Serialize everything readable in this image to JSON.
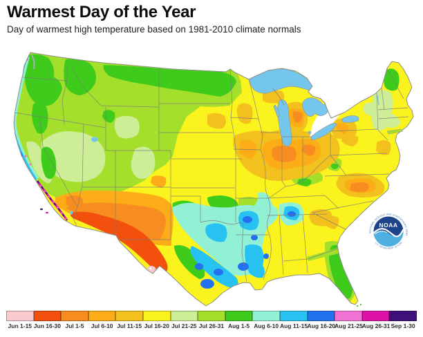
{
  "header": {
    "title": "Warmest Day of the Year",
    "subtitle": "Day of warmest high temperature based on 1981-2010 climate normals"
  },
  "legend": {
    "items": [
      {
        "label": "Jun 1-15",
        "color": "#f8c9cd"
      },
      {
        "label": "Jun 16-30",
        "color": "#f3500e"
      },
      {
        "label": "Jul 1-5",
        "color": "#f78d20"
      },
      {
        "label": "Jul 6-10",
        "color": "#fbac16"
      },
      {
        "label": "Jul 11-15",
        "color": "#f3c11d"
      },
      {
        "label": "Jul 16-20",
        "color": "#fbf31d"
      },
      {
        "label": "Jul 21-25",
        "color": "#cdee96"
      },
      {
        "label": "Jul 26-31",
        "color": "#a4df2c"
      },
      {
        "label": "Aug 1-5",
        "color": "#3ecb1b"
      },
      {
        "label": "Aug 6-10",
        "color": "#92f0d5"
      },
      {
        "label": "Aug 11-15",
        "color": "#27c2f2"
      },
      {
        "label": "Aug 16-20",
        "color": "#2471ef"
      },
      {
        "label": "Aug 21-25",
        "color": "#f272d3"
      },
      {
        "label": "Aug 26-31",
        "color": "#de12a8"
      },
      {
        "label": "Sep 1-30",
        "color": "#3d1178"
      }
    ]
  },
  "map": {
    "region": "Contiguous United States choropleth",
    "lake_color": "#74c6ec",
    "border_color": "#7a7a7a",
    "outline_color": "#8c8c8c"
  },
  "noaa_logo": {
    "acronym": "NOAA",
    "top_text": "NATIONAL OCEANIC AND ATMOSPHERIC ADMINISTRATION",
    "bottom_text": "U.S. DEPARTMENT OF COMMERCE",
    "dark_blue": "#1b4489",
    "light_blue": "#4fafe1",
    "ring_text_color": "#2a6cb3"
  }
}
